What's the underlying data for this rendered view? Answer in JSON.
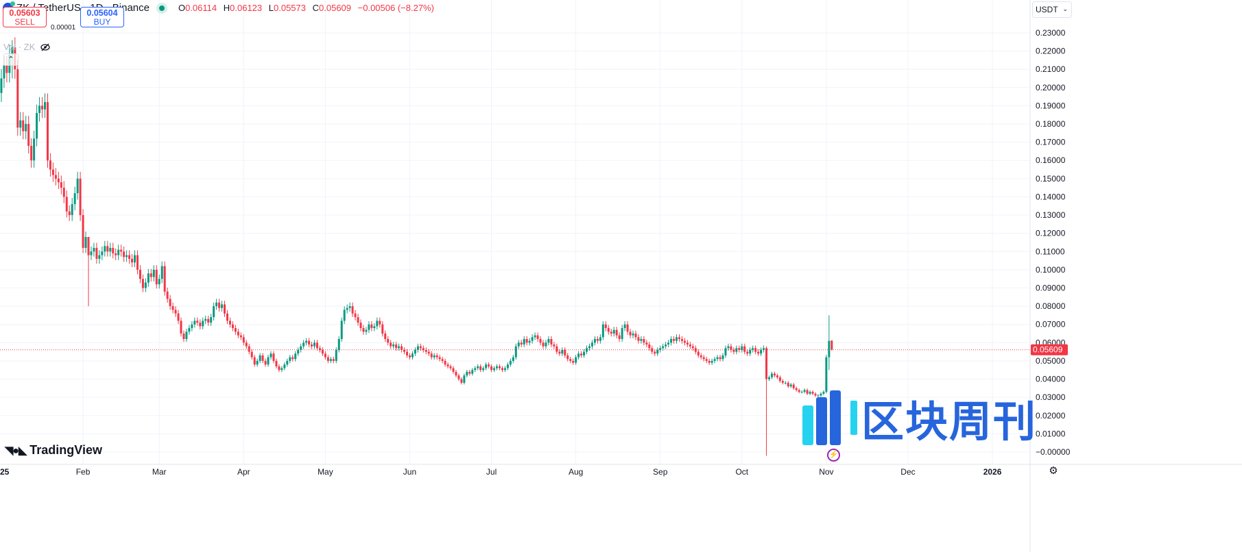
{
  "header": {
    "symbol": "ZK / TetherUS · 1D · Binance",
    "ohlc": {
      "o_label": "O",
      "o": "0.06114",
      "h_label": "H",
      "h": "0.06123",
      "l_label": "L",
      "l": "0.05573",
      "c_label": "C",
      "c": "0.05609",
      "change": "−0.00506 (−8.27%)"
    }
  },
  "trade": {
    "sell_price": "0.05603",
    "sell_label": "SELL",
    "spread": "0.00001",
    "buy_price": "0.05604",
    "buy_label": "BUY"
  },
  "volume_label": "Vol · ZK",
  "currency": "USDT",
  "branding": {
    "tradingview": "TradingView",
    "watermark": "区块周刊"
  },
  "colors": {
    "up": "#089981",
    "down": "#f23645",
    "grid": "#f0f3fa",
    "last_price": "#f23645",
    "watermark": "#1c5ddb"
  },
  "chart_data": {
    "type": "candlestick",
    "interval": "1D",
    "start_date": "2025-01-01",
    "ylim": [
      -0.005,
      0.235
    ],
    "y_ticks": [
      "0.23000",
      "0.22000",
      "0.21000",
      "0.20000",
      "0.19000",
      "0.18000",
      "0.17000",
      "0.16000",
      "0.15000",
      "0.14000",
      "0.13000",
      "0.12000",
      "0.11000",
      "0.10000",
      "0.09000",
      "0.08000",
      "0.07000",
      "0.06000",
      "0.05000",
      "0.04000",
      "0.03000",
      "0.02000",
      "0.01000",
      "−0.00000"
    ],
    "x_ticks": [
      {
        "label": "25",
        "day": 0,
        "bold": true
      },
      {
        "label": "Feb",
        "day": 31
      },
      {
        "label": "Mar",
        "day": 59
      },
      {
        "label": "Apr",
        "day": 90
      },
      {
        "label": "May",
        "day": 120
      },
      {
        "label": "Jun",
        "day": 151
      },
      {
        "label": "Jul",
        "day": 181
      },
      {
        "label": "Aug",
        "day": 212
      },
      {
        "label": "Sep",
        "day": 243
      },
      {
        "label": "Oct",
        "day": 273
      },
      {
        "label": "Nov",
        "day": 304
      },
      {
        "label": "Dec",
        "day": 334
      },
      {
        "label": "2026",
        "day": 365,
        "bold": true
      }
    ],
    "last_price": "0.05609",
    "last_open": 0.06114,
    "closes": [
      0.197,
      0.205,
      0.212,
      0.208,
      0.218,
      0.222,
      0.21,
      0.178,
      0.182,
      0.176,
      0.18,
      0.168,
      0.16,
      0.172,
      0.186,
      0.19,
      0.188,
      0.192,
      0.16,
      0.155,
      0.152,
      0.15,
      0.148,
      0.145,
      0.14,
      0.132,
      0.13,
      0.136,
      0.142,
      0.15,
      0.13,
      0.112,
      0.118,
      0.108,
      0.11,
      0.112,
      0.106,
      0.108,
      0.11,
      0.113,
      0.11,
      0.112,
      0.109,
      0.108,
      0.111,
      0.11,
      0.107,
      0.108,
      0.106,
      0.104,
      0.108,
      0.1,
      0.095,
      0.09,
      0.093,
      0.098,
      0.096,
      0.1,
      0.092,
      0.095,
      0.102,
      0.088,
      0.084,
      0.08,
      0.078,
      0.076,
      0.072,
      0.065,
      0.062,
      0.066,
      0.068,
      0.07,
      0.072,
      0.071,
      0.069,
      0.072,
      0.073,
      0.071,
      0.074,
      0.08,
      0.082,
      0.079,
      0.081,
      0.076,
      0.072,
      0.07,
      0.068,
      0.066,
      0.064,
      0.063,
      0.06,
      0.058,
      0.055,
      0.052,
      0.048,
      0.05,
      0.053,
      0.05,
      0.048,
      0.052,
      0.054,
      0.05,
      0.047,
      0.045,
      0.046,
      0.048,
      0.05,
      0.052,
      0.051,
      0.054,
      0.056,
      0.058,
      0.06,
      0.061,
      0.059,
      0.058,
      0.06,
      0.057,
      0.056,
      0.054,
      0.052,
      0.05,
      0.051,
      0.05,
      0.056,
      0.062,
      0.072,
      0.078,
      0.079,
      0.08,
      0.076,
      0.074,
      0.071,
      0.068,
      0.066,
      0.067,
      0.07,
      0.068,
      0.069,
      0.072,
      0.07,
      0.065,
      0.062,
      0.06,
      0.058,
      0.059,
      0.057,
      0.058,
      0.056,
      0.055,
      0.053,
      0.052,
      0.054,
      0.056,
      0.058,
      0.057,
      0.056,
      0.055,
      0.054,
      0.052,
      0.053,
      0.052,
      0.051,
      0.05,
      0.048,
      0.047,
      0.046,
      0.044,
      0.042,
      0.04,
      0.038,
      0.042,
      0.044,
      0.043,
      0.045,
      0.046,
      0.047,
      0.045,
      0.046,
      0.048,
      0.047,
      0.045,
      0.046,
      0.047,
      0.046,
      0.045,
      0.046,
      0.048,
      0.05,
      0.052,
      0.058,
      0.06,
      0.059,
      0.062,
      0.06,
      0.061,
      0.063,
      0.064,
      0.062,
      0.06,
      0.058,
      0.06,
      0.062,
      0.059,
      0.058,
      0.055,
      0.054,
      0.056,
      0.053,
      0.051,
      0.05,
      0.049,
      0.052,
      0.054,
      0.053,
      0.055,
      0.057,
      0.058,
      0.06,
      0.062,
      0.061,
      0.063,
      0.07,
      0.068,
      0.066,
      0.065,
      0.067,
      0.064,
      0.062,
      0.068,
      0.07,
      0.066,
      0.064,
      0.065,
      0.063,
      0.061,
      0.062,
      0.06,
      0.059,
      0.057,
      0.055,
      0.054,
      0.056,
      0.057,
      0.058,
      0.059,
      0.06,
      0.062,
      0.061,
      0.063,
      0.062,
      0.061,
      0.06,
      0.059,
      0.058,
      0.057,
      0.055,
      0.053,
      0.052,
      0.051,
      0.05,
      0.049,
      0.05,
      0.051,
      0.052,
      0.051,
      0.053,
      0.057,
      0.058,
      0.056,
      0.055,
      0.057,
      0.056,
      0.058,
      0.055,
      0.054,
      0.056,
      0.057,
      0.055,
      0.054,
      0.056,
      0.057,
      0.04,
      0.041,
      0.043,
      0.042,
      0.041,
      0.039,
      0.038,
      0.038,
      0.036,
      0.037,
      0.035,
      0.034,
      0.033,
      0.033,
      0.034,
      0.032,
      0.033,
      0.032,
      0.031,
      0.031,
      0.032,
      0.033,
      0.052,
      0.061,
      0.05609
    ],
    "wick_extremes": {
      "5": [
        0.226,
        0.205
      ],
      "33": [
        0.118,
        0.08
      ],
      "282": [
        0.058,
        -0.002
      ],
      "305": [
        0.075,
        0.045
      ],
      "306": [
        0.06123,
        0.05573
      ]
    }
  }
}
